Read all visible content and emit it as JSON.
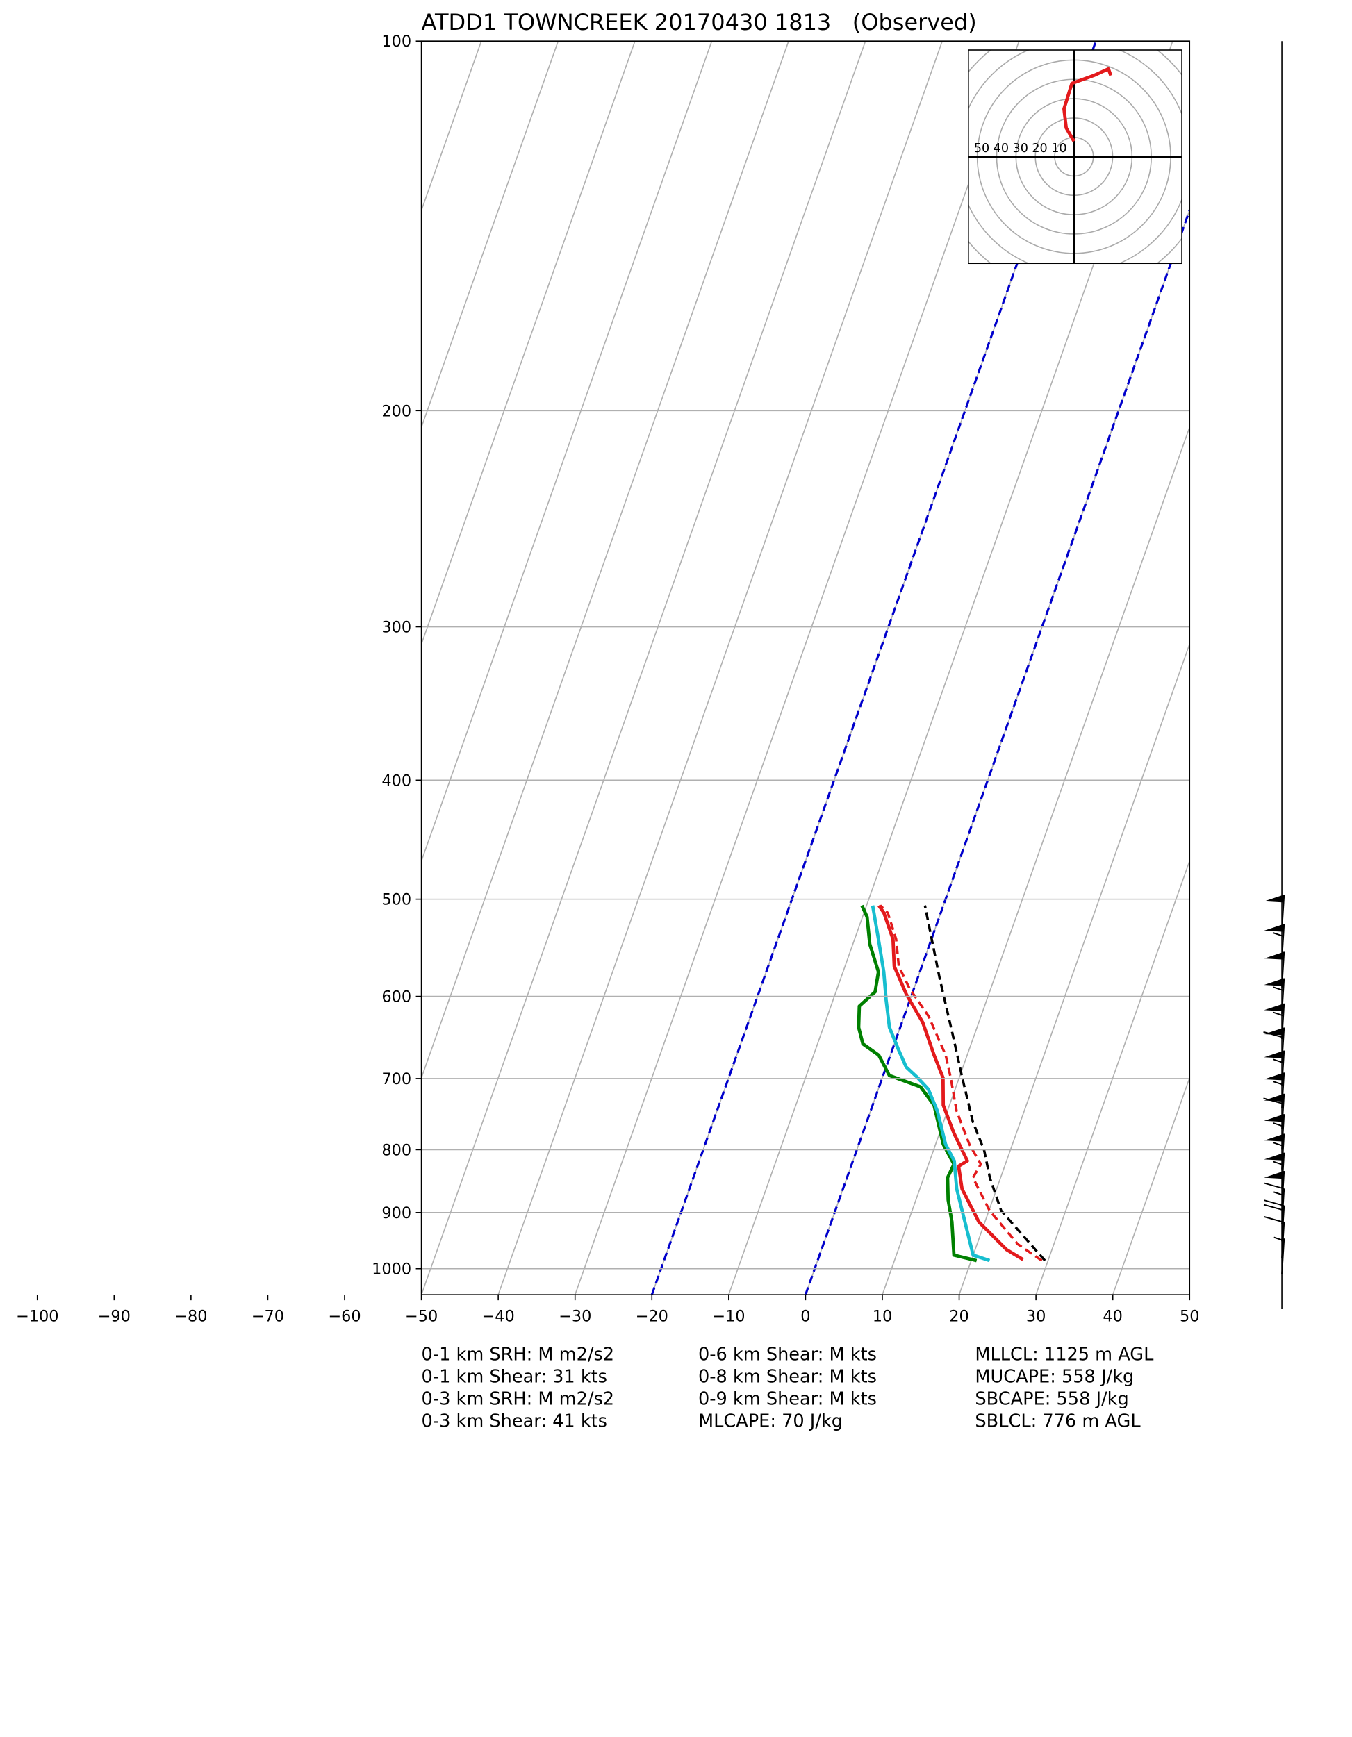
{
  "chart_data": {
    "type": "skewt",
    "title": "ATDD1 TOWNCREEK 20170430 1813   (Observed)",
    "xlim": [
      -50,
      50
    ],
    "xticks": [
      {
        "value": -100,
        "label": "−100"
      },
      {
        "value": -90,
        "label": "−90"
      },
      {
        "value": -80,
        "label": "−80"
      },
      {
        "value": -70,
        "label": "−70"
      },
      {
        "value": -60,
        "label": "−60"
      },
      {
        "value": -50,
        "label": "−50"
      },
      {
        "value": -40,
        "label": "−40"
      },
      {
        "value": -30,
        "label": "−30"
      },
      {
        "value": -20,
        "label": "−20"
      },
      {
        "value": -10,
        "label": "−10"
      },
      0,
      10,
      20,
      30,
      40,
      50
    ],
    "ylim": [
      1050,
      100
    ],
    "yticks": [
      100,
      200,
      300,
      400,
      500,
      600,
      700,
      800,
      900,
      1000
    ],
    "log_y": true,
    "grid": true,
    "dashed_isotherms": [
      -20,
      0
    ],
    "dashed_isotherm_color": "#0000cc",
    "series": [
      {
        "color": "#008000",
        "linestyle": "solid",
        "pressure": [
          985,
          975,
          916,
          879,
          843,
          822,
          792,
          736,
          711,
          696,
          670,
          656,
          636,
          611,
          595,
          573,
          544,
          517,
          506
        ],
        "temperature": [
          20.7,
          17.5,
          15.7,
          14.2,
          13.1,
          13.3,
          11.0,
          8.0,
          5.4,
          0.8,
          -1.5,
          -4.1,
          -5.4,
          -6.3,
          -4.9,
          -5.4,
          -7.8,
          -9.4,
          -10.6
        ]
      },
      {
        "color": "#17becf",
        "linestyle": "solid",
        "pressure": [
          985,
          975,
          916,
          861,
          817,
          792,
          744,
          714,
          699,
          685,
          663,
          636,
          604,
          573,
          539,
          506
        ],
        "temperature": [
          22.4,
          20.0,
          17.4,
          14.8,
          13.2,
          11.3,
          8.7,
          6.5,
          4.6,
          2.6,
          0.8,
          -1.4,
          -3.1,
          -4.7,
          -6.9,
          -9.2
        ]
      },
      {
        "color": "#e31a1c",
        "linestyle": "solid",
        "pressure": [
          983,
          965,
          916,
          861,
          825,
          817,
          776,
          736,
          699,
          670,
          630,
          598,
          567,
          539,
          513,
          506
        ],
        "temperature": [
          26.7,
          24.1,
          19.2,
          15.5,
          14.0,
          14.9,
          11.9,
          9.2,
          7.9,
          5.7,
          2.7,
          -0.7,
          -3.6,
          -5.0,
          -7.4,
          -8.4
        ]
      },
      {
        "color": "#e31a1c",
        "linestyle": "dashed",
        "pressure": [
          985,
          955,
          897,
          843,
          822,
          792,
          744,
          699,
          670,
          623,
          591,
          567,
          539,
          513,
          506
        ],
        "temperature": [
          29.2,
          25.3,
          20.1,
          16.4,
          16.8,
          14.4,
          11.2,
          8.9,
          7.2,
          3.2,
          -0.6,
          -3.0,
          -4.6,
          -6.9,
          -8.2
        ]
      },
      {
        "color": "#000000",
        "linestyle": "dashed",
        "pressure": [
          985,
          897,
          843,
          801,
          759,
          699,
          650,
          579,
          506
        ],
        "temperature": [
          29.6,
          21.6,
          18.6,
          16.6,
          13.8,
          10.4,
          7.5,
          2.8,
          -2.4
        ]
      }
    ],
    "barbs": {
      "pressure": [
        530,
        560,
        590,
        620,
        650,
        680,
        710,
        740,
        770,
        800,
        830,
        860,
        890,
        920,
        950,
        980,
        1010
      ],
      "speed": [
        50,
        55,
        50,
        55,
        55,
        60,
        55,
        55,
        60,
        55,
        55,
        55,
        50,
        15,
        20,
        10,
        5
      ]
    },
    "hodograph": {
      "rings": [
        50,
        40,
        30,
        20,
        10
      ],
      "color": "#e31a1c",
      "u": [
        0,
        -4.0,
        -5.2,
        -1.1,
        10.3,
        17.8,
        19.0
      ],
      "v": [
        8.0,
        14.9,
        24.7,
        37.9,
        42.0,
        45.4,
        42.0
      ]
    },
    "annotations": [
      [
        "0-1 km SRH: M m2/s2",
        "0-1 km Shear: 31 kts",
        "0-3 km SRH: M m2/s2",
        "0-3 km Shear: 41 kts"
      ],
      [
        "0-6 km Shear: M kts",
        "0-8 km Shear: M kts",
        "0-9 km Shear: M kts",
        "MLCAPE: 70 J/kg"
      ],
      [
        "MLLCL: 1125 m AGL",
        "MUCAPE: 558 J/kg",
        "SBCAPE: 558 J/kg",
        "SBLCL: 776 m AGL"
      ]
    ]
  }
}
